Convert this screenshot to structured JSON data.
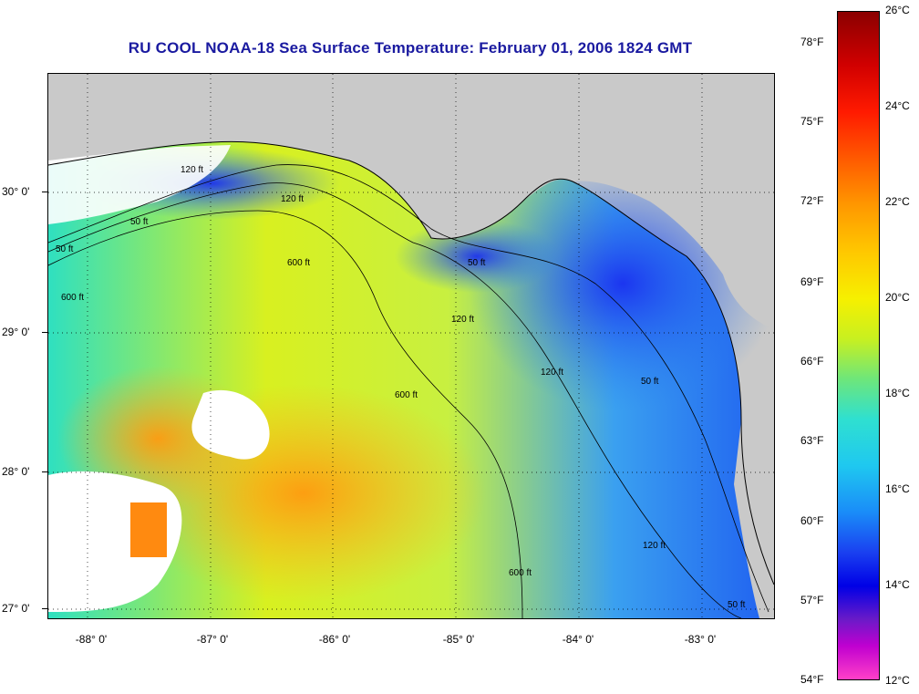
{
  "title": "RU COOL  NOAA-18  Sea Surface Temperature:  February 01, 2006 1824 GMT",
  "latitude_labels": [
    "30° 0'",
    "29° 0'",
    "28° 0'",
    "27° 0'"
  ],
  "longitude_labels": [
    "-88° 0'",
    "-87° 0'",
    "-86° 0'",
    "-85° 0'",
    "-84° 0'",
    "-83° 0'"
  ],
  "colorbar": {
    "fahrenheit_labels": [
      "78°F",
      "75°F",
      "72°F",
      "69°F",
      "66°F",
      "63°F",
      "60°F",
      "57°F",
      "54°F"
    ],
    "celsius_labels": [
      "26°C",
      "24°C",
      "22°C",
      "20°C",
      "18°C",
      "16°C",
      "14°C",
      "12°C"
    ],
    "range_celsius": [
      12,
      26
    ]
  },
  "contour_labels": [
    "50 ft",
    "120 ft",
    "600 ft",
    "50 ft",
    "120 ft",
    "600 ft",
    "120 ft",
    "50 ft",
    "600 ft",
    "120 ft",
    "50 ft",
    "600 ft",
    "120 ft",
    "50 ft"
  ],
  "colors": {
    "title": "#1a1aa0",
    "land": "#c9c9c9",
    "cloud_mask": "#ffffff"
  }
}
